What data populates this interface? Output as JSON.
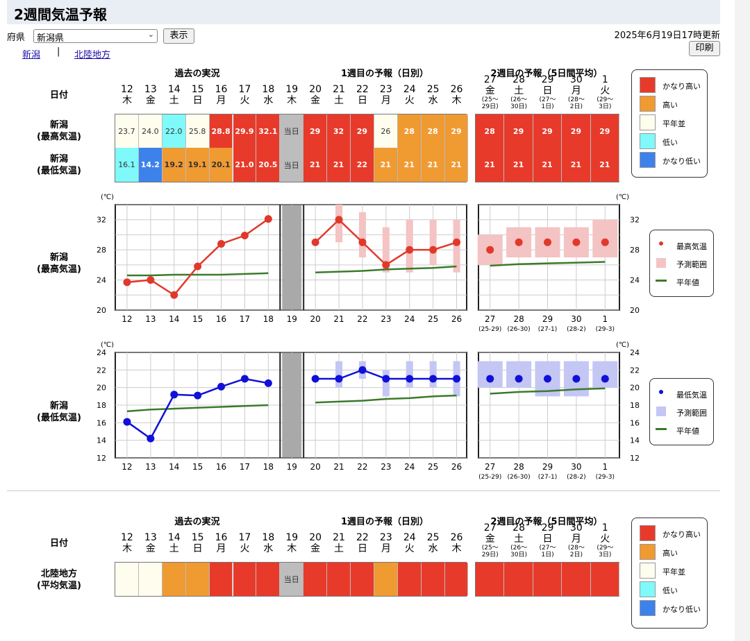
{
  "title": "2週間気温予報",
  "controls": {
    "pref_label": "府県",
    "pref_value": "新潟県",
    "show_button": "表示",
    "updated": "2025年6月19日17時更新",
    "print_button": "印刷"
  },
  "links": {
    "l1": "新潟",
    "sep": "|",
    "l2": "北陸地方"
  },
  "headers": {
    "past": "過去の実況",
    "week1": "1週目の予報（日別）",
    "week2": "2週目の予報（5日間平均）",
    "date": "日付"
  },
  "days": [
    {
      "d": "12",
      "w": "木"
    },
    {
      "d": "13",
      "w": "金"
    },
    {
      "d": "14",
      "w": "土"
    },
    {
      "d": "15",
      "w": "日"
    },
    {
      "d": "16",
      "w": "月"
    },
    {
      "d": "17",
      "w": "火"
    },
    {
      "d": "18",
      "w": "水"
    },
    {
      "d": "19",
      "w": "木"
    },
    {
      "d": "20",
      "w": "金"
    },
    {
      "d": "21",
      "w": "土"
    },
    {
      "d": "22",
      "w": "日"
    },
    {
      "d": "23",
      "w": "月"
    },
    {
      "d": "24",
      "w": "火"
    },
    {
      "d": "25",
      "w": "水"
    },
    {
      "d": "26",
      "w": "木"
    }
  ],
  "week2_days": [
    {
      "d": "27",
      "w": "金",
      "r1": "(25～",
      "r2": "29日)",
      "rs": "(25-29)"
    },
    {
      "d": "28",
      "w": "土",
      "r1": "(26～",
      "r2": "30日)",
      "rs": "(26-30)"
    },
    {
      "d": "29",
      "w": "日",
      "r1": "(27～",
      "r2": "1日)",
      "rs": "(27-1)"
    },
    {
      "d": "30",
      "w": "月",
      "r1": "(28～",
      "r2": "2日)",
      "rs": "(28-2)"
    },
    {
      "d": "1",
      "w": "火",
      "r1": "(29～",
      "r2": "3日)",
      "rs": "(29-3)"
    }
  ],
  "row_labels": {
    "max_a": "新潟",
    "max_b": "(最高気温)",
    "min_a": "新潟",
    "min_b": "(最低気温)",
    "reg_a": "北陸地方",
    "reg_b": "(平均気温)"
  },
  "today_label": "当日",
  "colors": {
    "very_high": "#e83a2a",
    "high": "#f09a32",
    "normal": "#fffdee",
    "low": "#7ff9fa",
    "very_low": "#3d82ea",
    "today": "#bdbdbd",
    "max_line": "#e0392b",
    "min_line": "#1010d8",
    "normal_line": "#3a7a2a",
    "max_range": "#f4c3c3",
    "min_range": "#c4c6f4"
  },
  "legend_class": [
    {
      "label": "かなり高い",
      "key": "very_high"
    },
    {
      "label": "高い",
      "key": "high"
    },
    {
      "label": "平年並",
      "key": "normal"
    },
    {
      "label": "低い",
      "key": "low"
    },
    {
      "label": "かなり低い",
      "key": "very_low"
    }
  ],
  "table_max": {
    "daily": [
      {
        "t": "23.7",
        "c": "normal"
      },
      {
        "t": "24.0",
        "c": "normal"
      },
      {
        "t": "22.0",
        "c": "low"
      },
      {
        "t": "25.8",
        "c": "normal"
      },
      {
        "t": "28.8",
        "c": "very_high"
      },
      {
        "t": "29.9",
        "c": "very_high"
      },
      {
        "t": "32.1",
        "c": "very_high"
      },
      {
        "t": "当日",
        "c": "today"
      },
      {
        "t": "29",
        "c": "very_high"
      },
      {
        "t": "32",
        "c": "very_high"
      },
      {
        "t": "29",
        "c": "very_high"
      },
      {
        "t": "26",
        "c": "normal"
      },
      {
        "t": "28",
        "c": "high"
      },
      {
        "t": "28",
        "c": "high"
      },
      {
        "t": "29",
        "c": "high"
      }
    ],
    "week2": [
      {
        "t": "28",
        "c": "very_high"
      },
      {
        "t": "29",
        "c": "very_high"
      },
      {
        "t": "29",
        "c": "very_high"
      },
      {
        "t": "29",
        "c": "very_high"
      },
      {
        "t": "29",
        "c": "very_high"
      }
    ]
  },
  "table_min": {
    "daily": [
      {
        "t": "16.1",
        "c": "low"
      },
      {
        "t": "14.2",
        "c": "very_low"
      },
      {
        "t": "19.2",
        "c": "high"
      },
      {
        "t": "19.1",
        "c": "high"
      },
      {
        "t": "20.1",
        "c": "high"
      },
      {
        "t": "21.0",
        "c": "very_high"
      },
      {
        "t": "20.5",
        "c": "very_high"
      },
      {
        "t": "当日",
        "c": "today"
      },
      {
        "t": "21",
        "c": "very_high"
      },
      {
        "t": "21",
        "c": "very_high"
      },
      {
        "t": "22",
        "c": "very_high"
      },
      {
        "t": "21",
        "c": "high"
      },
      {
        "t": "21",
        "c": "high"
      },
      {
        "t": "21",
        "c": "high"
      },
      {
        "t": "21",
        "c": "high"
      }
    ],
    "week2": [
      {
        "t": "21",
        "c": "very_high"
      },
      {
        "t": "21",
        "c": "very_high"
      },
      {
        "t": "21",
        "c": "very_high"
      },
      {
        "t": "21",
        "c": "very_high"
      },
      {
        "t": "21",
        "c": "very_high"
      }
    ]
  },
  "table_region": {
    "daily": [
      {
        "t": "",
        "c": "normal"
      },
      {
        "t": "",
        "c": "normal"
      },
      {
        "t": "",
        "c": "high"
      },
      {
        "t": "",
        "c": "high"
      },
      {
        "t": "",
        "c": "very_high"
      },
      {
        "t": "",
        "c": "very_high"
      },
      {
        "t": "",
        "c": "very_high"
      },
      {
        "t": "当日",
        "c": "today"
      },
      {
        "t": "",
        "c": "very_high"
      },
      {
        "t": "",
        "c": "very_high"
      },
      {
        "t": "",
        "c": "very_high"
      },
      {
        "t": "",
        "c": "high"
      },
      {
        "t": "",
        "c": "very_high"
      },
      {
        "t": "",
        "c": "very_high"
      },
      {
        "t": "",
        "c": "very_high"
      }
    ],
    "week2": [
      {
        "t": "",
        "c": "very_high"
      },
      {
        "t": "",
        "c": "very_high"
      },
      {
        "t": "",
        "c": "very_high"
      },
      {
        "t": "",
        "c": "very_high"
      },
      {
        "t": "",
        "c": "very_high"
      }
    ]
  },
  "unit": "(℃)",
  "legend_max": [
    "最高気温",
    "予測範囲",
    "平年値"
  ],
  "legend_min": [
    "最低気温",
    "予測範囲",
    "平年値"
  ],
  "chart_data": [
    {
      "type": "line",
      "ylabel": "(℃)",
      "ylim": [
        20,
        34
      ],
      "yticks": [
        20,
        24,
        28,
        32
      ],
      "x": [
        "12",
        "13",
        "14",
        "15",
        "16",
        "17",
        "18",
        "19",
        "20",
        "21",
        "22",
        "23",
        "24",
        "25",
        "26"
      ],
      "series": [
        {
          "name": "最高気温",
          "values": [
            23.7,
            24.0,
            22.0,
            25.8,
            28.8,
            29.9,
            32.1,
            null,
            29,
            32,
            29,
            26,
            28,
            28,
            29
          ]
        },
        {
          "name": "予測範囲",
          "ranges": [
            null,
            null,
            null,
            null,
            null,
            null,
            null,
            null,
            null,
            [
              29,
              34
            ],
            [
              27,
              33
            ],
            [
              25,
              31
            ],
            [
              25,
              32
            ],
            [
              26,
              32
            ],
            [
              25,
              32
            ]
          ]
        },
        {
          "name": "平年値",
          "values": [
            24.6,
            24.6,
            24.7,
            24.7,
            24.7,
            24.8,
            24.9,
            null,
            25.0,
            25.1,
            25.2,
            25.4,
            25.5,
            25.6,
            25.8
          ]
        }
      ],
      "week2": {
        "x": [
          "27",
          "28",
          "29",
          "30",
          "1"
        ],
        "values": [
          28,
          29,
          29,
          29,
          29
        ],
        "ranges": [
          [
            26,
            30
          ],
          [
            27,
            31
          ],
          [
            27,
            31
          ],
          [
            27,
            31
          ],
          [
            27,
            32
          ]
        ],
        "normal": [
          25.9,
          26.1,
          26.2,
          26.3,
          26.4
        ]
      }
    },
    {
      "type": "line",
      "ylabel": "(℃)",
      "ylim": [
        12,
        24
      ],
      "yticks": [
        12,
        14,
        16,
        18,
        20,
        22,
        24
      ],
      "x": [
        "12",
        "13",
        "14",
        "15",
        "16",
        "17",
        "18",
        "19",
        "20",
        "21",
        "22",
        "23",
        "24",
        "25",
        "26"
      ],
      "series": [
        {
          "name": "最低気温",
          "values": [
            16.1,
            14.2,
            19.2,
            19.1,
            20.1,
            21.0,
            20.5,
            null,
            21,
            21,
            22,
            21,
            21,
            21,
            21
          ]
        },
        {
          "name": "予測範囲",
          "ranges": [
            null,
            null,
            null,
            null,
            null,
            null,
            null,
            null,
            null,
            [
              20,
              23
            ],
            [
              21,
              23
            ],
            [
              19,
              22
            ],
            [
              20,
              23
            ],
            [
              20,
              23
            ],
            [
              19,
              23
            ]
          ]
        },
        {
          "name": "平年値",
          "values": [
            17.3,
            17.5,
            17.6,
            17.7,
            17.8,
            17.9,
            18.0,
            null,
            18.3,
            18.4,
            18.5,
            18.7,
            18.8,
            19.0,
            19.1
          ]
        }
      ],
      "week2": {
        "x": [
          "27",
          "28",
          "29",
          "30",
          "1"
        ],
        "values": [
          21,
          21,
          21,
          21,
          21
        ],
        "ranges": [
          [
            20,
            23
          ],
          [
            20,
            23
          ],
          [
            19,
            23
          ],
          [
            19,
            23
          ],
          [
            20,
            23
          ]
        ],
        "normal": [
          19.3,
          19.5,
          19.6,
          19.8,
          19.9
        ]
      }
    }
  ]
}
